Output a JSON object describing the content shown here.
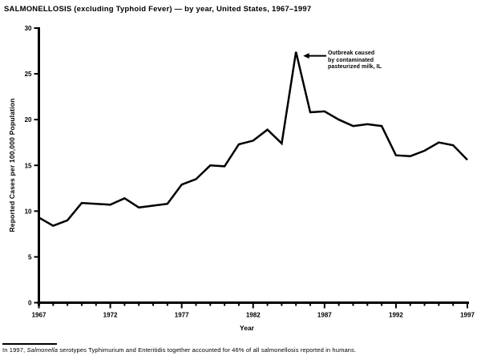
{
  "colors": {
    "background": "#ffffff",
    "foreground": "#000000"
  },
  "chart_data": {
    "type": "line",
    "title": "SALMONELLOSIS (excluding Typhoid Fever) — by year, United States, 1967–1997",
    "xlabel": "Year",
    "ylabel": "Reported Cases per 100,000 Population",
    "x": [
      1967,
      1968,
      1969,
      1970,
      1971,
      1972,
      1973,
      1974,
      1975,
      1976,
      1977,
      1978,
      1979,
      1980,
      1981,
      1982,
      1983,
      1984,
      1985,
      1986,
      1987,
      1988,
      1989,
      1990,
      1991,
      1992,
      1993,
      1994,
      1995,
      1996,
      1997
    ],
    "values": [
      9.3,
      8.4,
      9.0,
      10.9,
      10.8,
      10.7,
      11.4,
      10.4,
      10.6,
      10.8,
      12.9,
      13.5,
      15.0,
      14.9,
      17.3,
      17.7,
      18.9,
      17.4,
      27.4,
      20.8,
      20.9,
      20.0,
      19.3,
      19.5,
      19.3,
      16.1,
      16.0,
      16.6,
      17.5,
      17.2,
      15.6
    ],
    "xlim": [
      1967,
      1997
    ],
    "ylim": [
      0,
      30
    ],
    "yticks": [
      0,
      5,
      10,
      15,
      20,
      25,
      30
    ],
    "xticks_major": [
      1967,
      1972,
      1977,
      1982,
      1987,
      1992,
      1997
    ],
    "xticks_minor_every_year": true,
    "grid": false,
    "line_color": "#000000",
    "annotation": {
      "lines": [
        "Outbreak caused",
        "by contaminated",
        "pasteurized milk, IL"
      ],
      "points_to_year": 1985
    }
  },
  "footnote": {
    "prefix": "In 1997, ",
    "italic": "Salmonella",
    "rest": " serotypes Typhimurium and Enteritidis together accounted for 46% of all salmonellosis reported in humans."
  }
}
